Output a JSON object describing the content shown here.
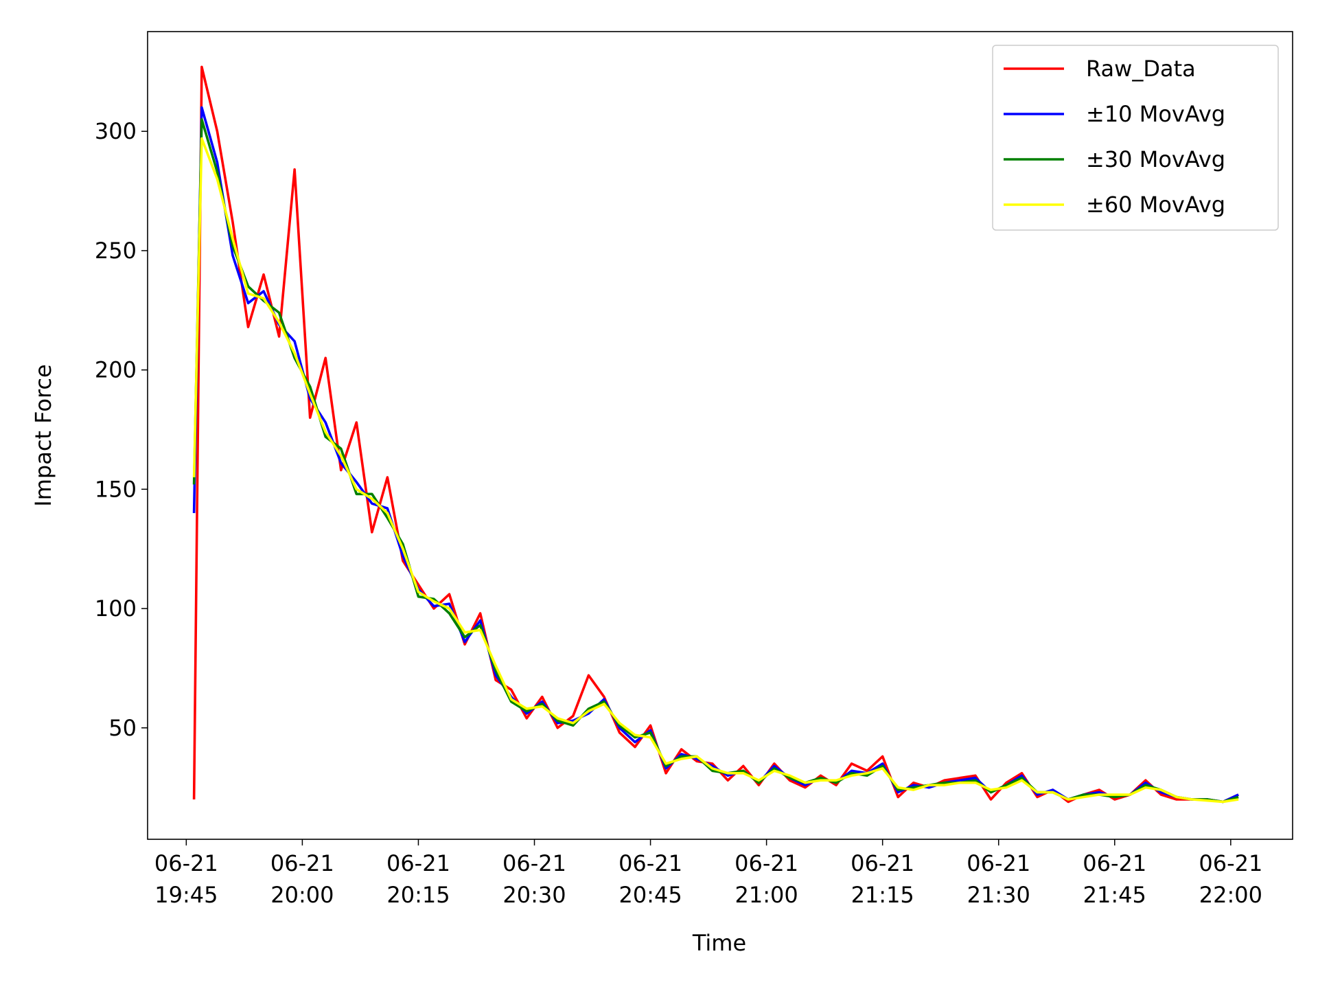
{
  "chart_data": {
    "type": "line",
    "x_label": "Time",
    "y_label": "Impact Force",
    "x": [
      "06-21 19:46",
      "06-21 19:47",
      "06-21 19:49",
      "06-21 19:51",
      "06-21 19:53",
      "06-21 19:55",
      "06-21 19:57",
      "06-21 19:59",
      "06-21 20:01",
      "06-21 20:03",
      "06-21 20:05",
      "06-21 20:07",
      "06-21 20:09",
      "06-21 20:11",
      "06-21 20:13",
      "06-21 20:15",
      "06-21 20:17",
      "06-21 20:19",
      "06-21 20:21",
      "06-21 20:23",
      "06-21 20:25",
      "06-21 20:27",
      "06-21 20:29",
      "06-21 20:31",
      "06-21 20:33",
      "06-21 20:35",
      "06-21 20:37",
      "06-21 20:39",
      "06-21 20:41",
      "06-21 20:43",
      "06-21 20:45",
      "06-21 20:47",
      "06-21 20:49",
      "06-21 20:51",
      "06-21 20:53",
      "06-21 20:55",
      "06-21 20:57",
      "06-21 20:59",
      "06-21 21:01",
      "06-21 21:03",
      "06-21 21:05",
      "06-21 21:07",
      "06-21 21:09",
      "06-21 21:11",
      "06-21 21:13",
      "06-21 21:15",
      "06-21 21:17",
      "06-21 21:19",
      "06-21 21:21",
      "06-21 21:23",
      "06-21 21:25",
      "06-21 21:27",
      "06-21 21:29",
      "06-21 21:31",
      "06-21 21:33",
      "06-21 21:35",
      "06-21 21:37",
      "06-21 21:39",
      "06-21 21:41",
      "06-21 21:43",
      "06-21 21:45",
      "06-21 21:47",
      "06-21 21:49",
      "06-21 21:51",
      "06-21 21:53",
      "06-21 21:55",
      "06-21 21:57",
      "06-21 21:59",
      "06-21 22:01"
    ],
    "series": [
      {
        "name": "Raw_Data",
        "color": "#ff0000",
        "values": [
          20,
          327,
          300,
          262,
          218,
          240,
          214,
          284,
          180,
          205,
          158,
          178,
          132,
          155,
          120,
          110,
          100,
          106,
          85,
          98,
          70,
          66,
          54,
          63,
          50,
          55,
          72,
          63,
          48,
          42,
          51,
          31,
          41,
          36,
          35,
          28,
          34,
          26,
          35,
          28,
          25,
          30,
          26,
          35,
          32,
          38,
          21,
          27,
          25,
          28,
          29,
          30,
          20,
          27,
          31,
          21,
          24,
          19,
          22,
          24,
          20,
          22,
          28,
          22,
          20,
          20,
          20,
          19,
          22
        ]
      },
      {
        "name": "±10 MovAvg",
        "color": "#0000ff",
        "values": [
          140,
          310,
          287,
          248,
          228,
          233,
          219,
          212,
          188,
          178,
          161,
          153,
          144,
          142,
          122,
          108,
          101,
          102,
          86,
          95,
          72,
          63,
          56,
          61,
          52,
          53,
          56,
          62,
          50,
          44,
          49,
          33,
          39,
          37,
          34,
          30,
          32,
          27,
          34,
          29,
          26,
          29,
          27,
          32,
          31,
          35,
          23,
          26,
          25,
          27,
          28,
          29,
          23,
          26,
          30,
          22,
          24,
          20,
          22,
          23,
          21,
          22,
          27,
          23,
          21,
          20,
          20,
          19,
          22
        ]
      },
      {
        "name": "±30 MovAvg",
        "color": "#008000",
        "values": [
          152,
          305,
          283,
          252,
          235,
          229,
          224,
          205,
          193,
          172,
          167,
          148,
          148,
          138,
          127,
          105,
          104,
          98,
          88,
          93,
          74,
          61,
          57,
          60,
          53,
          51,
          58,
          61,
          51,
          46,
          48,
          34,
          38,
          38,
          32,
          31,
          32,
          27,
          33,
          29,
          27,
          29,
          27,
          31,
          30,
          34,
          24,
          25,
          26,
          27,
          27,
          28,
          23,
          26,
          29,
          23,
          23,
          20,
          22,
          22,
          21,
          22,
          26,
          24,
          21,
          20,
          20,
          19,
          21
        ]
      },
      {
        "name": "±60 MovAvg",
        "color": "#ffff00",
        "values": [
          155,
          297,
          280,
          255,
          232,
          230,
          220,
          207,
          190,
          174,
          164,
          150,
          146,
          140,
          125,
          107,
          103,
          100,
          90,
          91,
          76,
          62,
          58,
          59,
          54,
          52,
          57,
          60,
          52,
          47,
          46,
          35,
          37,
          38,
          33,
          31,
          31,
          28,
          32,
          30,
          27,
          28,
          28,
          30,
          31,
          33,
          25,
          24,
          26,
          26,
          27,
          27,
          24,
          25,
          28,
          23,
          23,
          20,
          21,
          22,
          22,
          22,
          25,
          24,
          21,
          20,
          19.5,
          19,
          20
        ]
      }
    ],
    "xlim": [
      "06-21 19:40",
      "06-21 22:08"
    ],
    "xticks": [
      "06-21 19:45",
      "06-21 20:00",
      "06-21 20:15",
      "06-21 20:30",
      "06-21 20:45",
      "06-21 21:00",
      "06-21 21:15",
      "06-21 21:30",
      "06-21 21:45",
      "06-21 22:00"
    ],
    "ylim": [
      3.3,
      341.8
    ],
    "yticks": [
      50,
      100,
      150,
      200,
      250,
      300
    ],
    "grid": false,
    "legend": "upper right"
  }
}
